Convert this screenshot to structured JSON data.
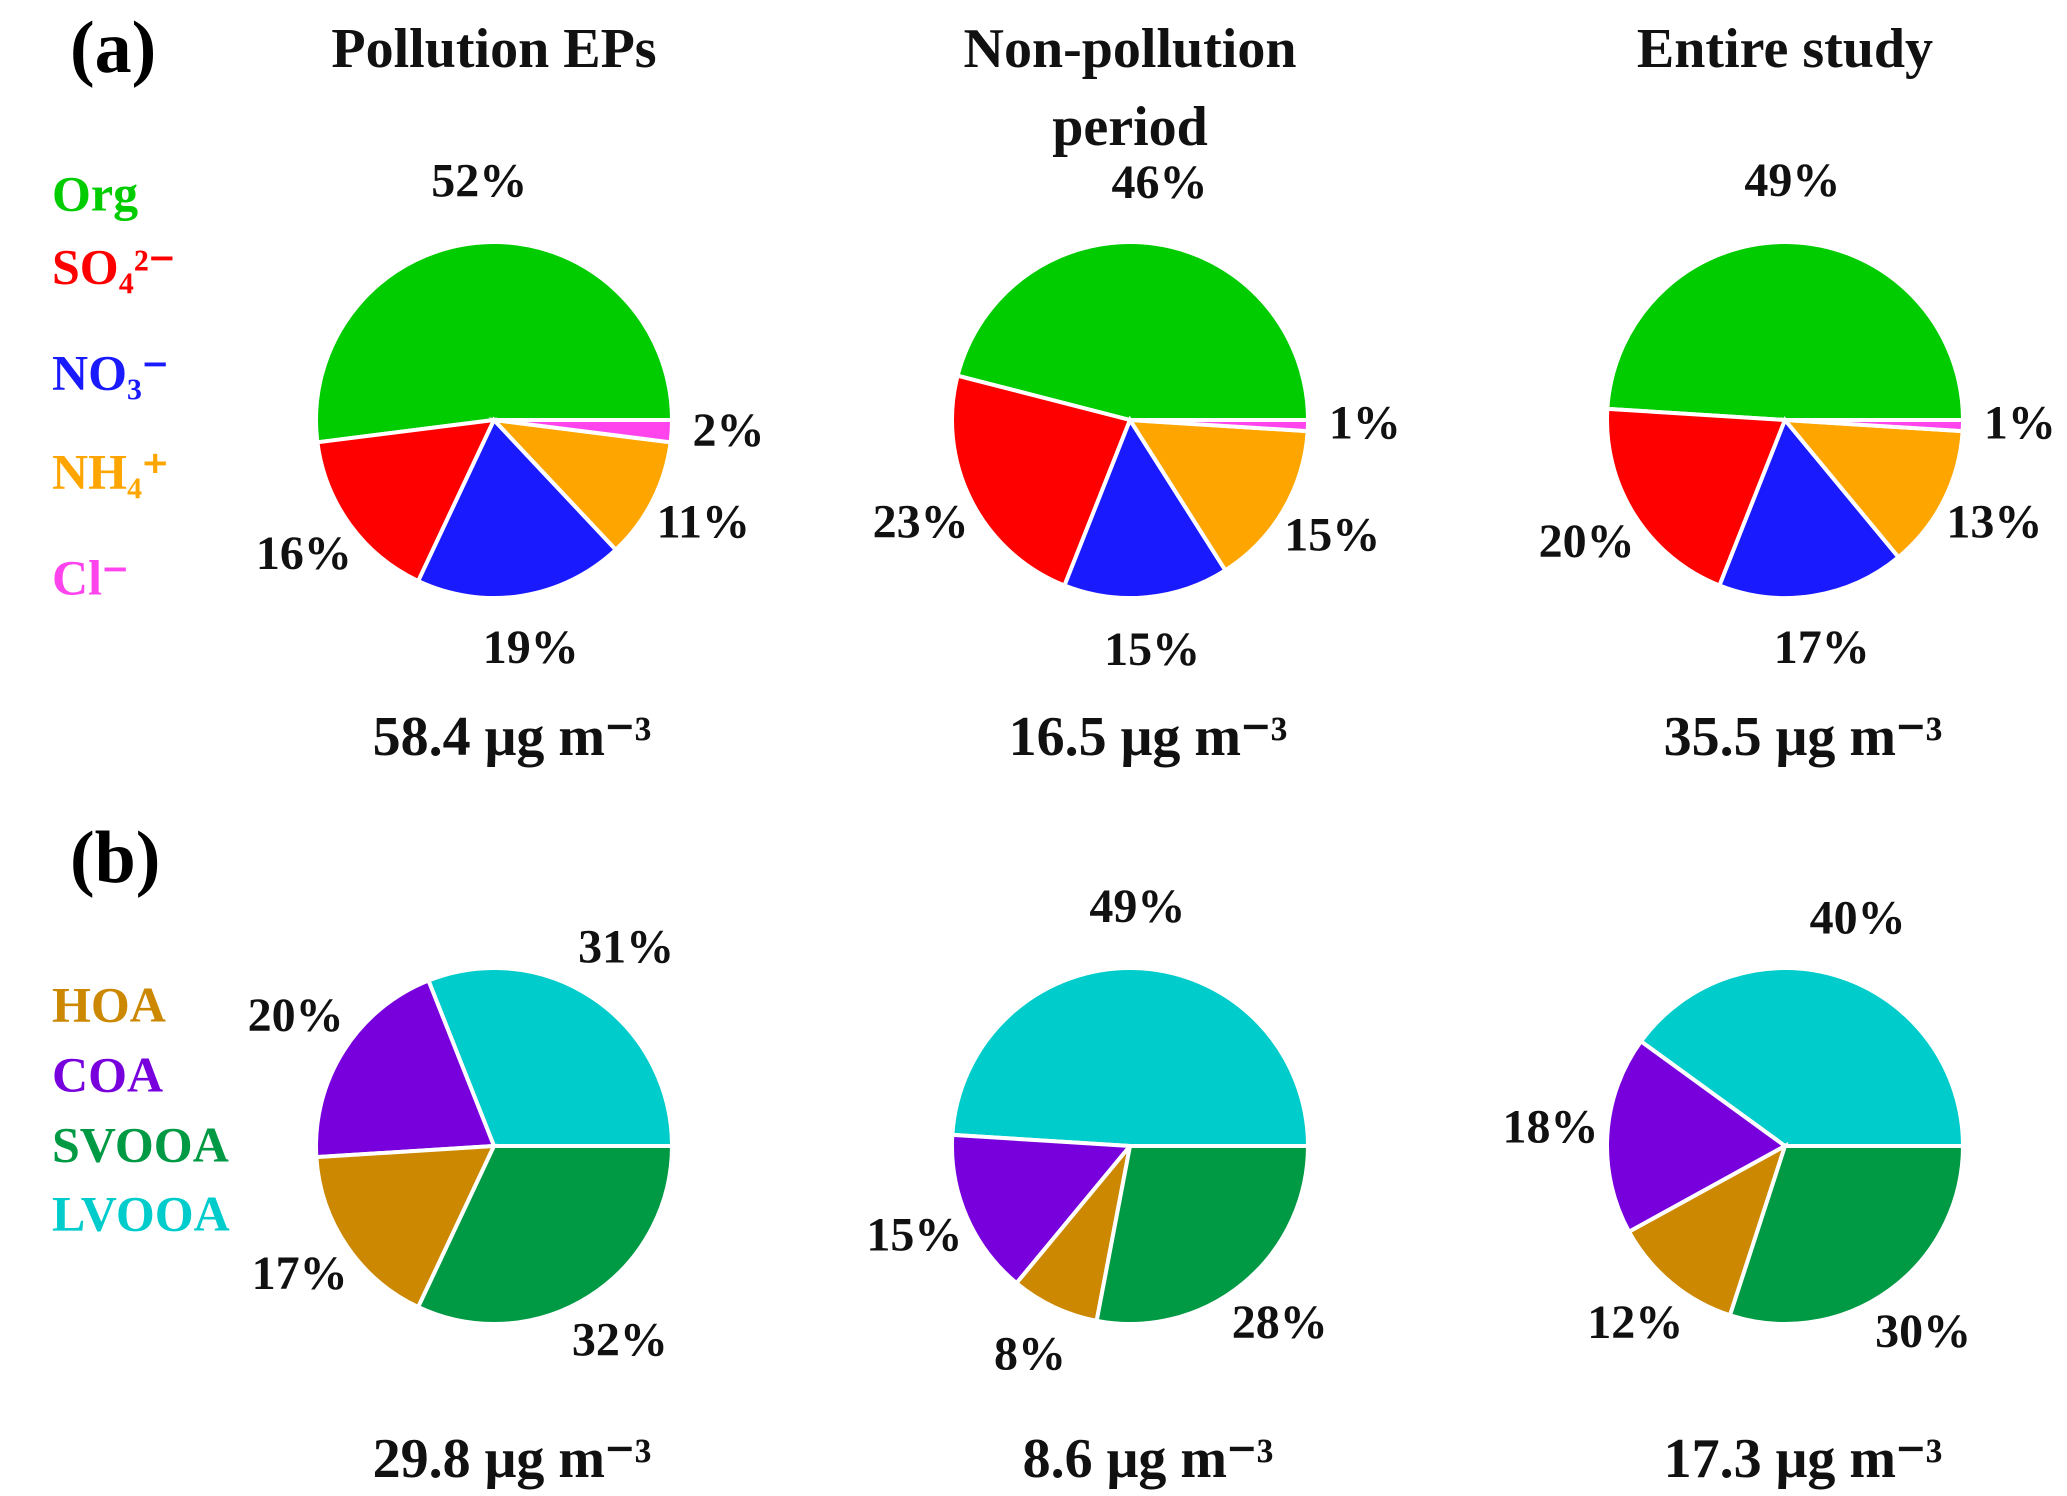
{
  "chart_data": [
    {
      "type": "pie",
      "panel_label": "(a)",
      "categories": [
        "Org",
        "SO₄²⁻",
        "NO₃⁻",
        "NH₄⁺",
        "Cl⁻"
      ],
      "colors": [
        "#00cc00",
        "#ff0000",
        "#1a1aff",
        "#ffa500",
        "#ff44ee"
      ],
      "pies": [
        {
          "title": "Pollution EPs",
          "values": [
            52,
            16,
            19,
            11,
            2
          ],
          "value_labels": [
            "52%",
            "16%",
            "19%",
            "11%",
            "2%"
          ],
          "total": "58.4 μg m⁻³"
        },
        {
          "title": "Non-pollution period",
          "values": [
            46,
            23,
            15,
            15,
            1
          ],
          "value_labels": [
            "46%",
            "23%",
            "15%",
            "15%",
            "1%"
          ],
          "total": "16.5 μg m⁻³"
        },
        {
          "title": "Entire study",
          "values": [
            49,
            20,
            17,
            13,
            1
          ],
          "value_labels": [
            "49%",
            "20%",
            "17%",
            "13%",
            "1%"
          ],
          "total": "35.5 μg m⁻³"
        }
      ]
    },
    {
      "type": "pie",
      "panel_label": "(b)",
      "categories": [
        "LVOOA",
        "COA",
        "HOA",
        "SVOOA"
      ],
      "colors": [
        "#00cccc",
        "#7700dd",
        "#cc8800",
        "#009944"
      ],
      "legend_order": [
        2,
        1,
        3,
        0
      ],
      "pies": [
        {
          "values": [
            31,
            20,
            17,
            32
          ],
          "value_labels": [
            "31%",
            "20%",
            "17%",
            "32%"
          ],
          "total": "29.8 μg m⁻³"
        },
        {
          "values": [
            49,
            15,
            8,
            28
          ],
          "value_labels": [
            "49%",
            "15%",
            "8%",
            "28%"
          ],
          "total": "8.6 μg m⁻³"
        },
        {
          "values": [
            40,
            18,
            12,
            30
          ],
          "value_labels": [
            "40%",
            "18%",
            "12%",
            "30%"
          ],
          "total": "17.3 μg m⁻³"
        }
      ]
    }
  ]
}
